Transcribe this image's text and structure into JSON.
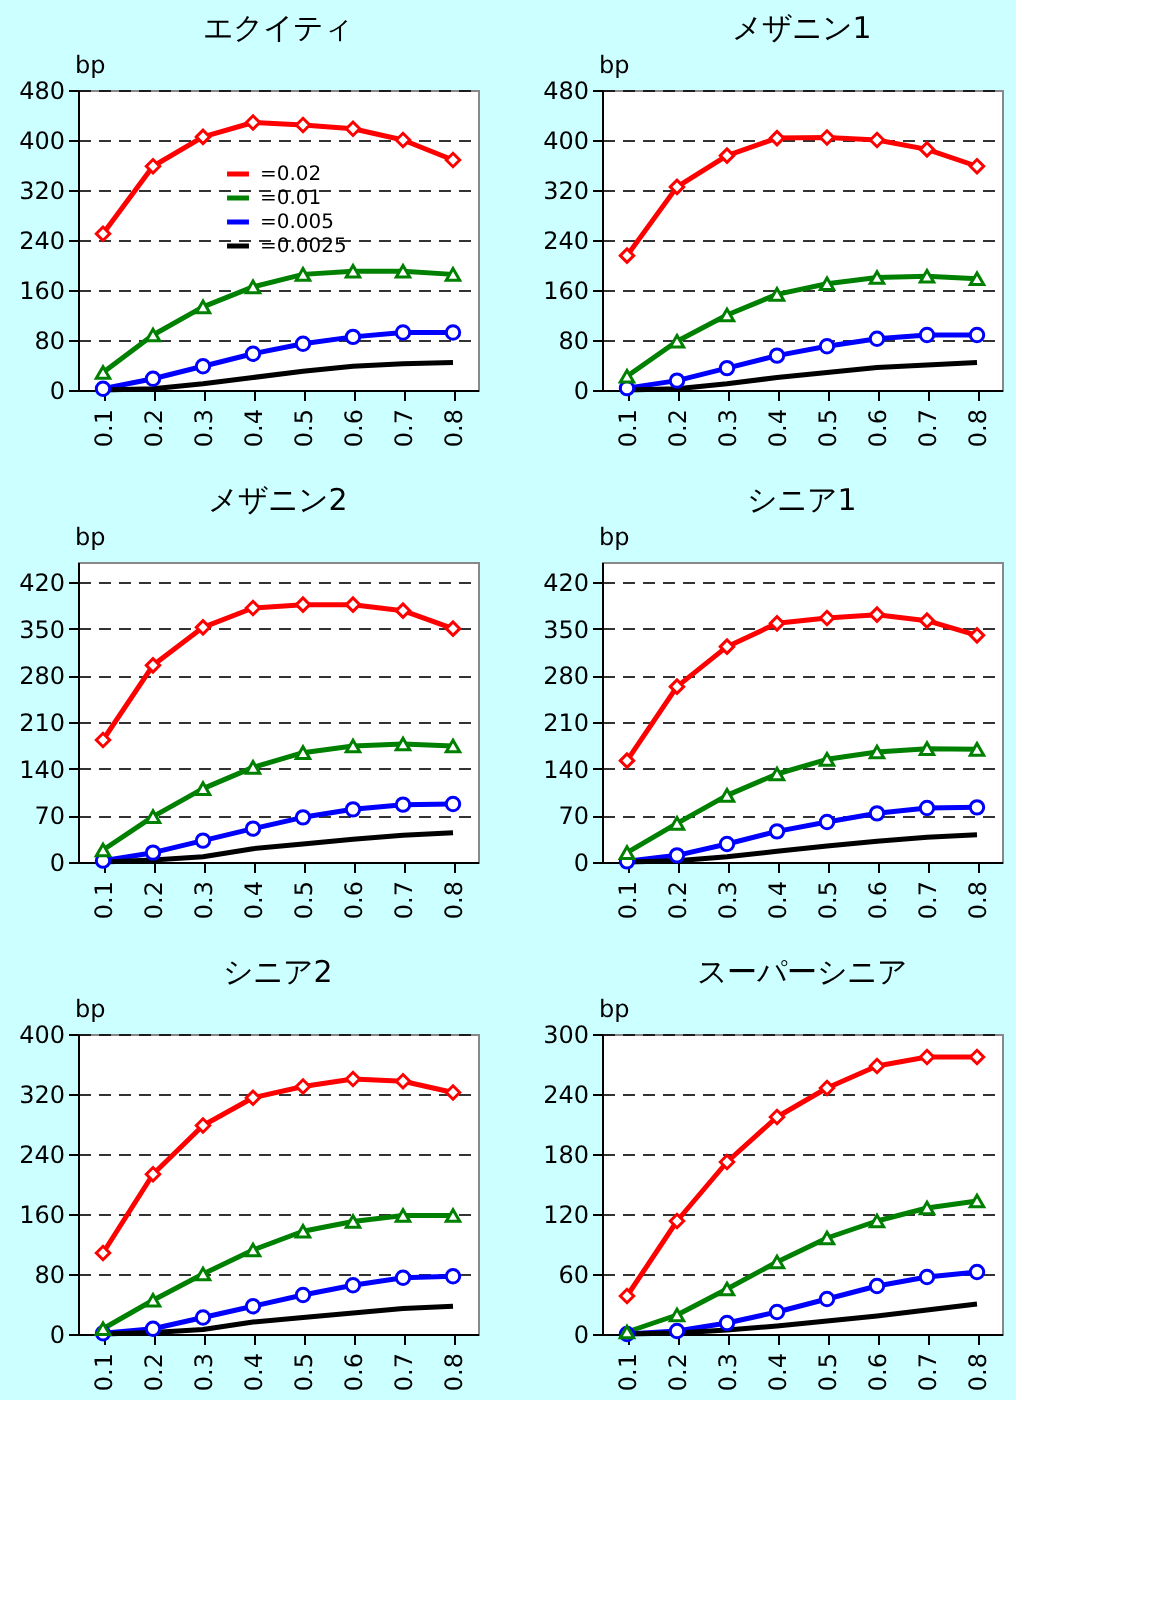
{
  "chart_data": [
    {
      "type": "line",
      "title": "エクイティ",
      "ylabel": "bp",
      "categories": [
        "0.1",
        "0.2",
        "0.3",
        "0.4",
        "0.5",
        "0.6",
        "0.7",
        "0.8"
      ],
      "ylim": [
        0,
        480
      ],
      "yticks": [
        0,
        80,
        160,
        240,
        320,
        400,
        480
      ],
      "grid": "y",
      "legend": "top",
      "line_style": "solid",
      "series": [
        {
          "name": "=0.02",
          "color": "#ff0000",
          "marker": "diamond",
          "values": [
            250,
            358,
            405,
            428,
            424,
            418,
            400,
            368
          ]
        },
        {
          "name": "=0.01",
          "color": "#008000",
          "marker": "triangle",
          "values": [
            28,
            88,
            133,
            165,
            185,
            190,
            190,
            185
          ]
        },
        {
          "name": "=0.005",
          "color": "#0000ff",
          "marker": "circle",
          "values": [
            2,
            18,
            38,
            58,
            74,
            85,
            92,
            92
          ]
        },
        {
          "name": "=0.0025",
          "color": "#000000",
          "marker": "none",
          "values": [
            0,
            2,
            10,
            20,
            30,
            38,
            42,
            44
          ]
        }
      ]
    },
    {
      "type": "line",
      "title": "メザニン1",
      "ylabel": "bp",
      "categories": [
        "0.1",
        "0.2",
        "0.3",
        "0.4",
        "0.5",
        "0.6",
        "0.7",
        "0.8"
      ],
      "ylim": [
        0,
        480
      ],
      "yticks": [
        0,
        80,
        160,
        240,
        320,
        400,
        480
      ],
      "grid": "y",
      "line_style": "solid",
      "series": [
        {
          "color": "#ff0000",
          "marker": "diamond",
          "values": [
            215,
            325,
            375,
            403,
            404,
            400,
            385,
            358
          ]
        },
        {
          "color": "#008000",
          "marker": "triangle",
          "values": [
            22,
            78,
            120,
            153,
            170,
            180,
            182,
            178
          ]
        },
        {
          "color": "#0000ff",
          "marker": "circle",
          "values": [
            3,
            15,
            35,
            55,
            70,
            82,
            88,
            88
          ]
        },
        {
          "color": "#000000",
          "marker": "none",
          "values": [
            0,
            2,
            10,
            20,
            28,
            36,
            40,
            44
          ]
        }
      ]
    },
    {
      "type": "line",
      "title": "メザニン2",
      "ylabel": "bp",
      "categories": [
        "0.1",
        "0.2",
        "0.3",
        "0.4",
        "0.5",
        "0.6",
        "0.7",
        "0.8"
      ],
      "ylim": [
        0,
        450
      ],
      "yticks": [
        0,
        70,
        140,
        210,
        280,
        350,
        420
      ],
      "grid": "y",
      "line_style": "solid",
      "series": [
        {
          "color": "#ff0000",
          "marker": "diamond",
          "values": [
            183,
            295,
            352,
            381,
            386,
            386,
            377,
            350
          ]
        },
        {
          "color": "#008000",
          "marker": "triangle",
          "values": [
            18,
            68,
            110,
            142,
            164,
            174,
            177,
            174
          ]
        },
        {
          "color": "#0000ff",
          "marker": "circle",
          "values": [
            2,
            14,
            32,
            50,
            67,
            79,
            86,
            87
          ]
        },
        {
          "color": "#000000",
          "marker": "none",
          "values": [
            0,
            3,
            8,
            20,
            27,
            34,
            40,
            44
          ]
        }
      ]
    },
    {
      "type": "line",
      "title": "シニア1",
      "ylabel": "bp",
      "categories": [
        "0.1",
        "0.2",
        "0.3",
        "0.4",
        "0.5",
        "0.6",
        "0.7",
        "0.8"
      ],
      "ylim": [
        0,
        450
      ],
      "yticks": [
        0,
        70,
        140,
        210,
        280,
        350,
        420
      ],
      "grid": "y",
      "line_style": "solid",
      "series": [
        {
          "color": "#ff0000",
          "marker": "diamond",
          "values": [
            152,
            263,
            323,
            358,
            366,
            371,
            362,
            340
          ]
        },
        {
          "color": "#008000",
          "marker": "triangle",
          "values": [
            14,
            58,
            100,
            132,
            154,
            165,
            170,
            169
          ]
        },
        {
          "color": "#0000ff",
          "marker": "circle",
          "values": [
            1,
            10,
            27,
            46,
            60,
            73,
            81,
            82
          ]
        },
        {
          "color": "#000000",
          "marker": "none",
          "values": [
            0,
            2,
            8,
            16,
            24,
            31,
            37,
            41
          ]
        }
      ]
    },
    {
      "type": "line",
      "title": "シニア2",
      "ylabel": "bp",
      "categories": [
        "0.1",
        "0.2",
        "0.3",
        "0.4",
        "0.5",
        "0.6",
        "0.7",
        "0.8"
      ],
      "ylim": [
        0,
        400
      ],
      "yticks": [
        0,
        80,
        160,
        240,
        320,
        400
      ],
      "grid": "y",
      "line_style": "solid",
      "series": [
        {
          "color": "#ff0000",
          "marker": "diamond",
          "values": [
            108,
            213,
            278,
            315,
            330,
            340,
            337,
            322
          ]
        },
        {
          "color": "#008000",
          "marker": "triangle",
          "values": [
            7,
            45,
            80,
            112,
            137,
            150,
            158,
            158
          ]
        },
        {
          "color": "#0000ff",
          "marker": "circle",
          "values": [
            1,
            7,
            22,
            37,
            52,
            65,
            75,
            77
          ]
        },
        {
          "color": "#000000",
          "marker": "none",
          "values": [
            0,
            2,
            6,
            16,
            22,
            28,
            34,
            37
          ]
        }
      ]
    },
    {
      "type": "line",
      "title": "スーパーシニア",
      "ylabel": "bp",
      "categories": [
        "0.1",
        "0.2",
        "0.3",
        "0.4",
        "0.5",
        "0.6",
        "0.7",
        "0.8"
      ],
      "ylim": [
        0,
        300
      ],
      "yticks": [
        0,
        60,
        120,
        180,
        240,
        300
      ],
      "grid": "y",
      "line_style": "solid",
      "series": [
        {
          "color": "#ff0000",
          "marker": "diamond",
          "values": [
            38,
            113,
            172,
            217,
            246,
            268,
            277,
            277
          ]
        },
        {
          "color": "#008000",
          "marker": "triangle",
          "values": [
            2,
            19,
            45,
            72,
            96,
            113,
            126,
            133
          ]
        },
        {
          "color": "#0000ff",
          "marker": "circle",
          "values": [
            0,
            3,
            11,
            22,
            35,
            48,
            57,
            62
          ]
        },
        {
          "color": "#000000",
          "marker": "none",
          "values": [
            0,
            1,
            4,
            8,
            13,
            18,
            24,
            30
          ]
        }
      ]
    }
  ]
}
